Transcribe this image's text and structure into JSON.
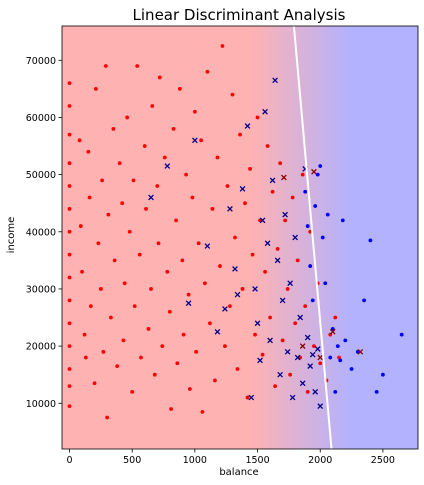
{
  "chart_data": {
    "type": "scatter",
    "title": "Linear Discriminant Analysis",
    "xlabel": "balance",
    "ylabel": "income",
    "xlim": [
      -60,
      2780
    ],
    "ylim": [
      2000,
      76000
    ],
    "x_ticks": [
      0,
      500,
      1000,
      1500,
      2000,
      2500
    ],
    "y_ticks": [
      10000,
      20000,
      30000,
      40000,
      50000,
      60000,
      70000
    ],
    "x_tick_labels": [
      "0",
      "500",
      "1000",
      "1500",
      "2000",
      "2500"
    ],
    "y_tick_labels": [
      "10000",
      "20000",
      "30000",
      "40000",
      "50000",
      "60000",
      "70000"
    ],
    "grid": false,
    "legend": "none",
    "background": {
      "class_0_color": "#ffb2b2",
      "class_1_color": "#b2b2ff",
      "transition_balance": [
        1450,
        2250
      ]
    },
    "decision_boundary": {
      "color": "#ffffff",
      "points": [
        [
          1790,
          76000
        ],
        [
          2090,
          2000
        ]
      ]
    },
    "series": [
      {
        "marker": "dot",
        "color": "#ff0000",
        "points": [
          [
            0,
            66000
          ],
          [
            0,
            62000
          ],
          [
            0,
            57000
          ],
          [
            0,
            52000
          ],
          [
            0,
            48000
          ],
          [
            0,
            44000
          ],
          [
            0,
            40000
          ],
          [
            0,
            36000
          ],
          [
            0,
            32000
          ],
          [
            0,
            28000
          ],
          [
            0,
            24000
          ],
          [
            0,
            20000
          ],
          [
            0,
            16000
          ],
          [
            0,
            13000
          ],
          [
            0,
            9500
          ],
          [
            80,
            56000
          ],
          [
            90,
            41000
          ],
          [
            100,
            33000
          ],
          [
            120,
            22000
          ],
          [
            130,
            18000
          ],
          [
            150,
            54000
          ],
          [
            160,
            46000
          ],
          [
            170,
            27000
          ],
          [
            200,
            13500
          ],
          [
            210,
            65000
          ],
          [
            230,
            38000
          ],
          [
            250,
            30000
          ],
          [
            260,
            49000
          ],
          [
            270,
            19000
          ],
          [
            290,
            69000
          ],
          [
            300,
            7500
          ],
          [
            310,
            43000
          ],
          [
            330,
            25000
          ],
          [
            350,
            58000
          ],
          [
            360,
            35000
          ],
          [
            380,
            16500
          ],
          [
            400,
            52000
          ],
          [
            420,
            45000
          ],
          [
            430,
            21000
          ],
          [
            440,
            31000
          ],
          [
            460,
            60000
          ],
          [
            480,
            40000
          ],
          [
            500,
            12000
          ],
          [
            510,
            49000
          ],
          [
            520,
            27000
          ],
          [
            540,
            69000
          ],
          [
            560,
            36000
          ],
          [
            570,
            18000
          ],
          [
            600,
            55000
          ],
          [
            610,
            44000
          ],
          [
            630,
            23000
          ],
          [
            650,
            30000
          ],
          [
            660,
            62000
          ],
          [
            680,
            15000
          ],
          [
            700,
            48000
          ],
          [
            710,
            38000
          ],
          [
            720,
            67000
          ],
          [
            740,
            20000
          ],
          [
            760,
            53000
          ],
          [
            780,
            33000
          ],
          [
            800,
            26000
          ],
          [
            810,
            9000
          ],
          [
            830,
            58000
          ],
          [
            850,
            42000
          ],
          [
            860,
            17000
          ],
          [
            880,
            65000
          ],
          [
            900,
            35000
          ],
          [
            910,
            22000
          ],
          [
            930,
            50000
          ],
          [
            950,
            29000
          ],
          [
            960,
            12500
          ],
          [
            980,
            46000
          ],
          [
            1000,
            61000
          ],
          [
            1010,
            19000
          ],
          [
            1030,
            38000
          ],
          [
            1050,
            56000
          ],
          [
            1060,
            8500
          ],
          [
            1080,
            31000
          ],
          [
            1100,
            68000
          ],
          [
            1120,
            24000
          ],
          [
            1140,
            44000
          ],
          [
            1160,
            14000
          ],
          [
            1180,
            53000
          ],
          [
            1200,
            34000
          ],
          [
            1220,
            72500
          ],
          [
            1240,
            20000
          ],
          [
            1260,
            48000
          ],
          [
            1280,
            27000
          ],
          [
            1300,
            64000
          ],
          [
            1320,
            39000
          ],
          [
            1340,
            16000
          ],
          [
            1360,
            57000
          ],
          [
            1380,
            30000
          ],
          [
            1400,
            45000
          ],
          [
            1420,
            11000
          ],
          [
            1440,
            51000
          ],
          [
            1460,
            36000
          ],
          [
            1480,
            22000
          ],
          [
            1500,
            60000
          ],
          [
            1520,
            42000
          ],
          [
            1540,
            18500
          ],
          [
            1560,
            33000
          ],
          [
            1580,
            55000
          ],
          [
            1600,
            25000
          ],
          [
            1620,
            47000
          ],
          [
            1640,
            13000
          ],
          [
            1660,
            37000
          ],
          [
            1680,
            52000
          ],
          [
            1700,
            21000
          ],
          [
            1720,
            42000
          ],
          [
            1740,
            30000
          ],
          [
            1760,
            15000
          ],
          [
            1780,
            46000
          ],
          [
            1800,
            24000
          ],
          [
            1820,
            35000
          ],
          [
            1840,
            18000
          ],
          [
            1860,
            50000
          ],
          [
            1880,
            27000
          ],
          [
            1900,
            12000
          ],
          [
            1920,
            40000
          ],
          [
            1950,
            20000
          ],
          [
            1980,
            31000
          ],
          [
            2000,
            17000
          ],
          [
            2050,
            14000
          ],
          [
            2080,
            22000
          ],
          [
            2120,
            25000
          ],
          [
            2150,
            18000
          ]
        ]
      },
      {
        "marker": "dot",
        "color": "#0000ff",
        "points": [
          [
            1880,
            47000
          ],
          [
            1900,
            41000
          ],
          [
            1920,
            34000
          ],
          [
            1940,
            28000
          ],
          [
            1960,
            44500
          ],
          [
            1980,
            50000
          ],
          [
            2000,
            51500
          ],
          [
            2020,
            39000
          ],
          [
            2040,
            31000
          ],
          [
            2060,
            43000
          ],
          [
            2080,
            18000
          ],
          [
            2100,
            23000
          ],
          [
            2120,
            12000
          ],
          [
            2140,
            20000
          ],
          [
            2160,
            17500
          ],
          [
            2180,
            42000
          ],
          [
            2200,
            21000
          ],
          [
            2250,
            16000
          ],
          [
            2300,
            19000
          ],
          [
            2350,
            28000
          ],
          [
            2400,
            38500
          ],
          [
            2450,
            12000
          ],
          [
            2500,
            15000
          ],
          [
            2650,
            22000
          ]
        ]
      },
      {
        "marker": "x",
        "color": "#00008b",
        "points": [
          [
            650,
            46000
          ],
          [
            780,
            51500
          ],
          [
            950,
            27500
          ],
          [
            1000,
            56000
          ],
          [
            1100,
            37500
          ],
          [
            1180,
            22500
          ],
          [
            1240,
            26500
          ],
          [
            1280,
            44000
          ],
          [
            1320,
            33500
          ],
          [
            1340,
            29000
          ],
          [
            1380,
            47500
          ],
          [
            1420,
            58500
          ],
          [
            1450,
            11000
          ],
          [
            1480,
            30000
          ],
          [
            1500,
            24000
          ],
          [
            1520,
            17500
          ],
          [
            1540,
            42000
          ],
          [
            1560,
            61000
          ],
          [
            1580,
            38000
          ],
          [
            1600,
            21000
          ],
          [
            1620,
            49000
          ],
          [
            1640,
            66500
          ],
          [
            1660,
            35000
          ],
          [
            1680,
            15000
          ],
          [
            1700,
            28000
          ],
          [
            1720,
            43000
          ],
          [
            1740,
            19000
          ],
          [
            1760,
            31000
          ],
          [
            1780,
            11000
          ],
          [
            1800,
            39000
          ],
          [
            1820,
            18000
          ],
          [
            1840,
            25000
          ],
          [
            1860,
            13500
          ],
          [
            1880,
            51000
          ],
          [
            1900,
            21500
          ],
          [
            1920,
            16500
          ],
          [
            1940,
            18500
          ],
          [
            1960,
            12000
          ],
          [
            1980,
            19500
          ],
          [
            2000,
            9500
          ]
        ]
      },
      {
        "marker": "x",
        "color": "#8b0000",
        "points": [
          [
            1710,
            49500
          ],
          [
            1860,
            20000
          ],
          [
            1950,
            50500
          ],
          [
            2000,
            18000
          ],
          [
            2100,
            22500
          ],
          [
            2320,
            19000
          ]
        ]
      }
    ]
  }
}
